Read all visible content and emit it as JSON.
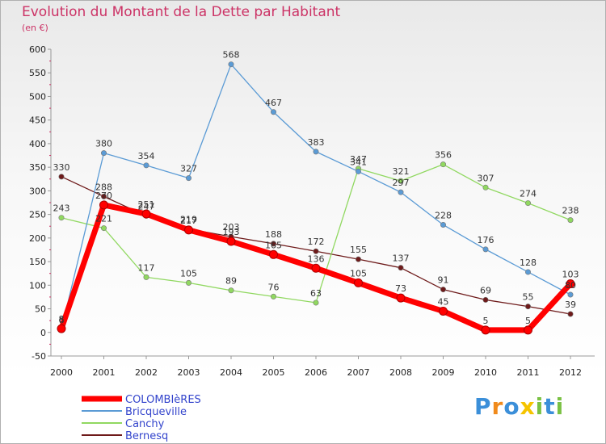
{
  "header": {
    "title": "Evolution du Montant de la Dette par Habitant",
    "subtitle": "(en €)"
  },
  "chart_data": {
    "type": "line",
    "x": [
      "2000",
      "2001",
      "2002",
      "2003",
      "2004",
      "2005",
      "2006",
      "2007",
      "2008",
      "2009",
      "2010",
      "2011",
      "2012"
    ],
    "ylim": [
      -50,
      600
    ],
    "yticks": [
      -50,
      0,
      50,
      100,
      150,
      200,
      250,
      300,
      350,
      400,
      450,
      500,
      550,
      600
    ],
    "grid": false,
    "series": [
      {
        "name": "Bernesq",
        "color": "#6e1a1a",
        "values": [
          330,
          288,
          247,
          219,
          203,
          188,
          172,
          155,
          137,
          91,
          69,
          55,
          39
        ]
      },
      {
        "name": "Canchy",
        "color": "#90d860",
        "values": [
          243,
          221,
          117,
          105,
          89,
          76,
          63,
          347,
          321,
          356,
          307,
          274,
          238
        ]
      },
      {
        "name": "Bricqueville",
        "color": "#5b9bd5",
        "values": [
          6,
          380,
          354,
          327,
          568,
          467,
          383,
          341,
          297,
          228,
          176,
          128,
          80
        ]
      },
      {
        "name": "COLOMBIèRES",
        "color": "#ff0000",
        "values": [
          8,
          270,
          251,
          217,
          193,
          165,
          136,
          105,
          73,
          45,
          5,
          5,
          103
        ]
      }
    ],
    "legend": [
      "COLOMBIèRES",
      "Bricqueville",
      "Canchy",
      "Bernesq"
    ],
    "legend_position": "bottom-left"
  },
  "logo": {
    "letters": [
      "P",
      "r",
      "o",
      "x",
      "i",
      "t",
      "i"
    ],
    "colors": [
      "#3b8fd9",
      "#f08a1c",
      "#3b8fd9",
      "#f5c400",
      "#7ac143",
      "#3b8fd9",
      "#7ac143"
    ]
  }
}
